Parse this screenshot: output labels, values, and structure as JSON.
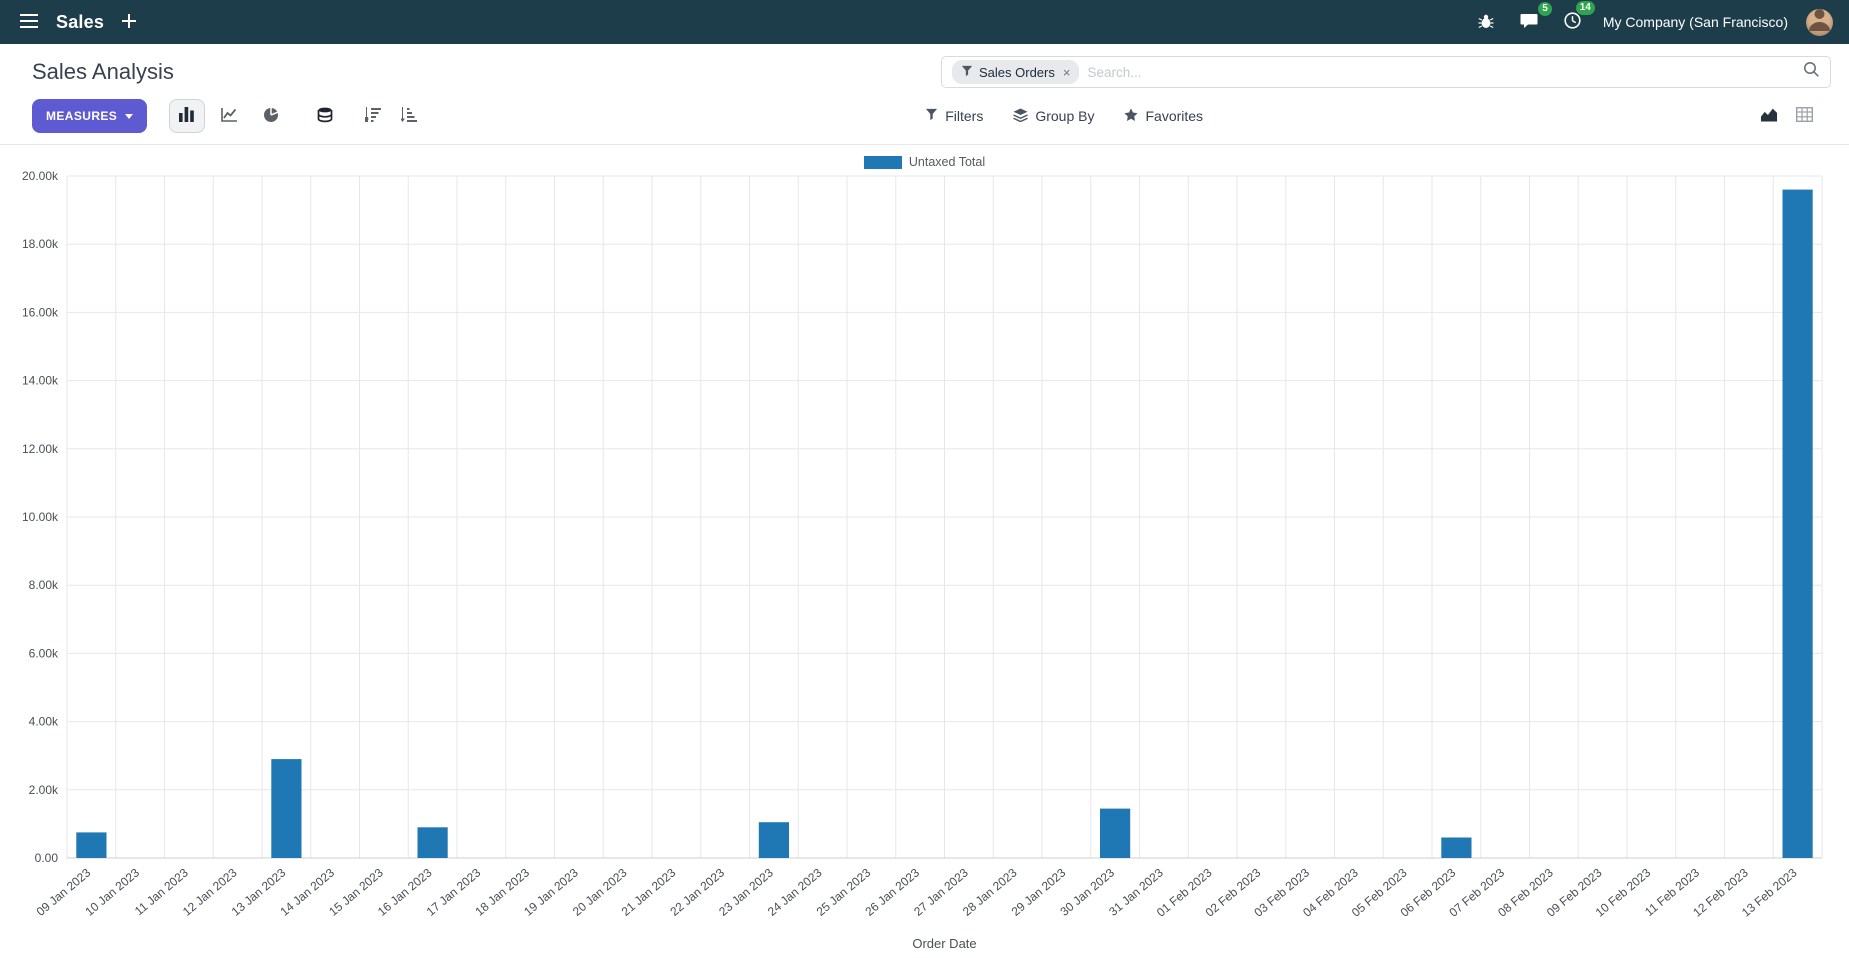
{
  "navbar": {
    "app_name": "Sales",
    "messages_badge": "5",
    "activities_badge": "14",
    "company": "My Company (San Francisco)"
  },
  "control_panel": {
    "title": "Sales Analysis",
    "search": {
      "facet": "Sales Orders",
      "remove_facet": "×",
      "placeholder": "Search..."
    },
    "measures_label": "MEASURES",
    "filters_label": "Filters",
    "groupby_label": "Group By",
    "favorites_label": "Favorites"
  },
  "colors": {
    "navbar_bg": "#1c3d49",
    "primary_button": "#5e5bd2",
    "bar": "#1f77b4",
    "badge_green": "#2ea44f"
  },
  "chart_data": {
    "type": "bar",
    "title": "",
    "xlabel": "Order Date",
    "ylabel": "",
    "ylim": [
      0,
      20000
    ],
    "y_tick_step": 2000,
    "y_tick_labels": [
      "0.00",
      "2.00k",
      "4.00k",
      "6.00k",
      "8.00k",
      "10.00k",
      "12.00k",
      "14.00k",
      "16.00k",
      "18.00k",
      "20.00k"
    ],
    "grid": true,
    "legend_position": "top",
    "legend": [
      {
        "label": "Untaxed Total",
        "color": "#1f77b4"
      }
    ],
    "categories": [
      "09 Jan 2023",
      "10 Jan 2023",
      "11 Jan 2023",
      "12 Jan 2023",
      "13 Jan 2023",
      "14 Jan 2023",
      "15 Jan 2023",
      "16 Jan 2023",
      "17 Jan 2023",
      "18 Jan 2023",
      "19 Jan 2023",
      "20 Jan 2023",
      "21 Jan 2023",
      "22 Jan 2023",
      "23 Jan 2023",
      "24 Jan 2023",
      "25 Jan 2023",
      "26 Jan 2023",
      "27 Jan 2023",
      "28 Jan 2023",
      "29 Jan 2023",
      "30 Jan 2023",
      "31 Jan 2023",
      "01 Feb 2023",
      "02 Feb 2023",
      "03 Feb 2023",
      "04 Feb 2023",
      "05 Feb 2023",
      "06 Feb 2023",
      "07 Feb 2023",
      "08 Feb 2023",
      "09 Feb 2023",
      "10 Feb 2023",
      "11 Feb 2023",
      "12 Feb 2023",
      "13 Feb 2023"
    ],
    "series": [
      {
        "name": "Untaxed Total",
        "color": "#1f77b4",
        "values": [
          750,
          0,
          0,
          0,
          2900,
          0,
          0,
          900,
          0,
          0,
          0,
          0,
          0,
          0,
          1050,
          0,
          0,
          0,
          0,
          0,
          0,
          1450,
          0,
          0,
          0,
          0,
          0,
          0,
          600,
          0,
          0,
          0,
          0,
          0,
          0,
          19600
        ]
      }
    ]
  }
}
